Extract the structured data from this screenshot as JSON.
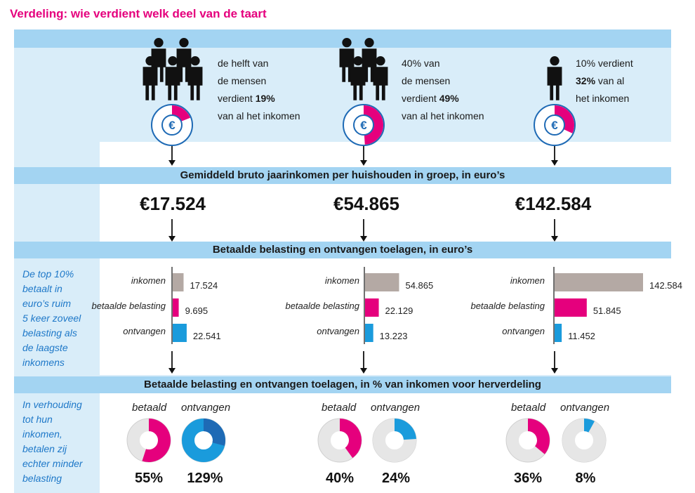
{
  "title": "Verdeling: wie verdient welk deel van de taart",
  "groups": [
    {
      "caption_lines": [
        "de helft van",
        "de mensen",
        "verdient ",
        "van al het inkomen"
      ],
      "caption_bold": "19%",
      "share_pct": 19
    },
    {
      "caption_lines": [
        "40% van",
        "de mensen",
        "verdient ",
        "van al het inkomen"
      ],
      "caption_bold": "49%",
      "share_pct": 49
    },
    {
      "caption_lines": [
        "10% verdient",
        "",
        "van al",
        "het inkomen"
      ],
      "caption_bold": "32%",
      "share_pct": 32
    }
  ],
  "band1": "Gemiddeld bruto jaarinkomen per huishouden in groep, in euro’s",
  "band2": "Betaalde belasting en ontvangen toelagen, in euro’s",
  "band3": "Betaalde belasting en ontvangen toelagen, in % van inkomen voor herverdeling",
  "amounts": [
    "€17.524",
    "€54.865",
    "€142.584"
  ],
  "side_note_1": [
    "De top 10%",
    "betaalt in",
    "euro’s ruim",
    "5 keer zoveel",
    "belasting als",
    "de laagste",
    "inkomens"
  ],
  "side_note_2": [
    "In verhouding",
    "tot hun",
    "inkomen,",
    "betalen zij",
    "echter minder",
    "belasting"
  ],
  "chart_data": [
    {
      "type": "bar",
      "title": "Betaalde belasting en ontvangen toelagen, in euro’s",
      "categories": [
        "inkomen",
        "betaalde belasting",
        "ontvangen"
      ],
      "groups": [
        {
          "values": [
            17524,
            9695,
            22541
          ],
          "labels": [
            "17.524",
            "9.695",
            "22.541"
          ]
        },
        {
          "values": [
            54865,
            22129,
            13223
          ],
          "labels": [
            "54.865",
            "22.129",
            "13.223"
          ]
        },
        {
          "values": [
            142584,
            51845,
            11452
          ],
          "labels": [
            "142.584",
            "51.845",
            "11.452"
          ]
        }
      ],
      "colors": [
        "#b4a9a4",
        "#e5007d",
        "#1a9bdc"
      ]
    },
    {
      "type": "pie",
      "title": "Betaalde belasting en ontvangen toelagen, in % van inkomen voor herverdeling",
      "series_labels": [
        "betaald",
        "ontvangen"
      ],
      "groups": [
        {
          "betaald": 55,
          "ontvangen": 129,
          "betaald_label": "55%",
          "ontvangen_label": "129%"
        },
        {
          "betaald": 40,
          "ontvangen": 24,
          "betaald_label": "40%",
          "ontvangen_label": "24%"
        },
        {
          "betaald": 36,
          "ontvangen": 8,
          "betaald_label": "36%",
          "ontvangen_label": "8%"
        }
      ]
    }
  ],
  "colors": {
    "accent": "#e5007d",
    "blue": "#1a9bdc",
    "darkblue": "#1e6ab5",
    "grey": "#b4a9a4",
    "band": "#a3d4f2",
    "bg": "#d9edf9"
  }
}
